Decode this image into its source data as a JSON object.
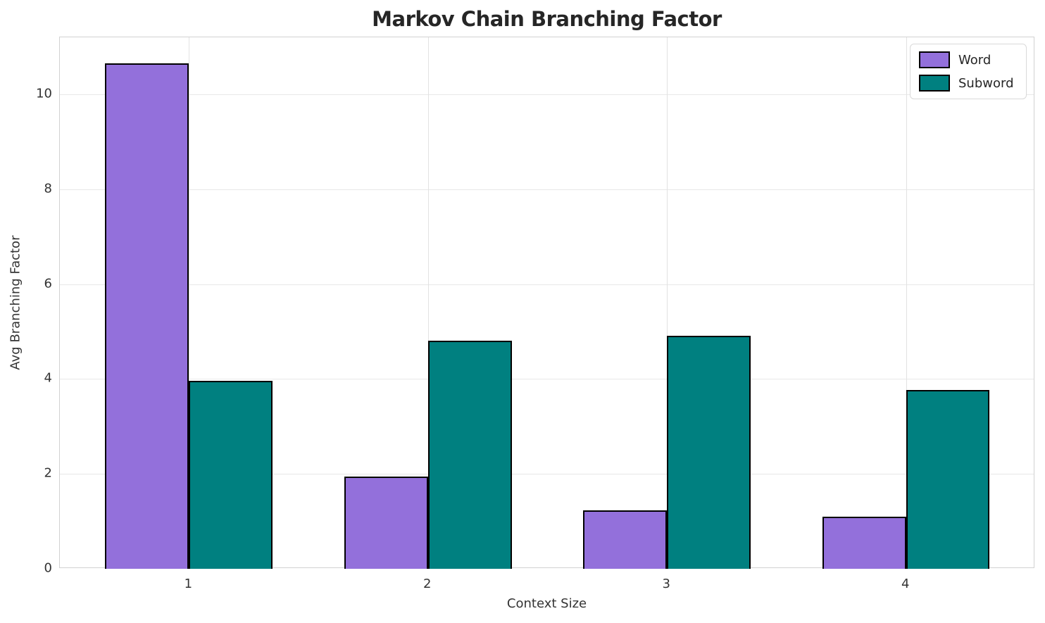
{
  "chart_data": {
    "type": "bar",
    "title": "Markov Chain Branching Factor",
    "xlabel": "Context Size",
    "ylabel": "Avg Branching Factor",
    "categories": [
      "1",
      "2",
      "3",
      "4"
    ],
    "series": [
      {
        "name": "Word",
        "color": "#9370DB",
        "values": [
          10.65,
          1.95,
          1.23,
          1.1
        ]
      },
      {
        "name": "Subword",
        "color": "#008080",
        "values": [
          3.96,
          4.81,
          4.91,
          3.77
        ]
      }
    ],
    "ylim": [
      0,
      11.2
    ],
    "yticks": [
      0,
      2,
      4,
      6,
      8,
      10
    ],
    "bar_width": 0.35,
    "bar_edge_color": "#000000",
    "grid": true,
    "legend_position": "upper-right"
  },
  "colors": {
    "background": "#ffffff",
    "grid": "#e8e8e8",
    "spine": "#d2d2d2",
    "title_text": "#262626",
    "tick_text": "#333333"
  }
}
